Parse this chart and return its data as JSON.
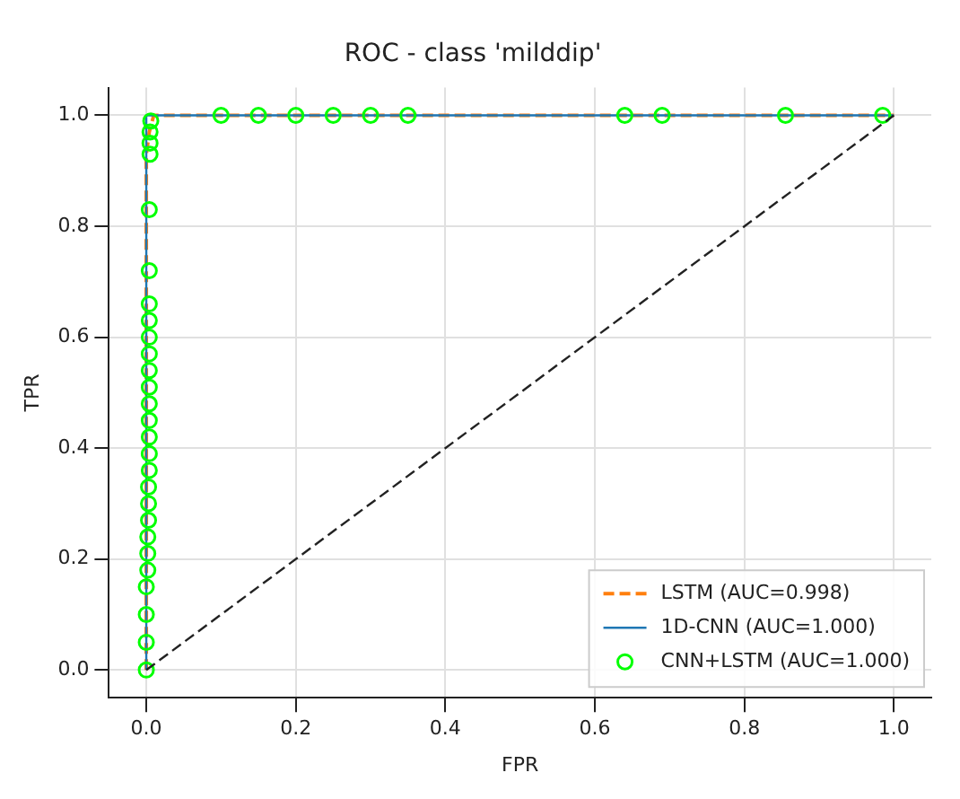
{
  "chart_data": {
    "type": "line",
    "title": "ROC - class 'milddip'",
    "xlabel": "FPR",
    "ylabel": "TPR",
    "xlim": [
      -0.05,
      1.05
    ],
    "ylim": [
      -0.05,
      1.05
    ],
    "xticks": [
      {
        "value": 0,
        "label": "0.0"
      },
      0.2,
      0.4,
      0.6,
      0.8,
      {
        "value": 1,
        "label": "1.0"
      }
    ],
    "yticks": [
      {
        "value": 0,
        "label": "0.0"
      },
      0.2,
      0.4,
      0.6,
      0.8,
      {
        "value": 1,
        "label": "1.0"
      }
    ],
    "grid": true,
    "legend": "bottom right",
    "series": [
      {
        "name": "LSTM (AUC=0.998)",
        "color": "#ff7f0e",
        "line_style": "dashed",
        "marker": "none",
        "x": [
          0,
          0,
          0.004,
          0.01,
          1
        ],
        "values": [
          0,
          0.93,
          0.97,
          1,
          1
        ]
      },
      {
        "name": "1D-CNN (AUC=1.000)",
        "color": "#1f77b4",
        "line_style": "solid",
        "marker": "none",
        "x": [
          0,
          0,
          1
        ],
        "values": [
          0,
          1,
          1
        ]
      },
      {
        "name": "CNN+LSTM (AUC=1.000)",
        "type": "scatter",
        "color": "#00ff00",
        "marker": "circle",
        "x": [
          0,
          0,
          0,
          0,
          0.002,
          0.002,
          0.002,
          0.003,
          0.003,
          0.003,
          0.004,
          0.004,
          0.004,
          0.004,
          0.004,
          0.004,
          0.004,
          0.004,
          0.004,
          0.004,
          0.004,
          0.004,
          0.004,
          0.005,
          0.005,
          0.005,
          0.006,
          0.1,
          0.15,
          0.2,
          0.25,
          0.3,
          0.35,
          0.64,
          0.69,
          0.855,
          0.985
        ],
        "values": [
          0,
          0.05,
          0.1,
          0.15,
          0.18,
          0.21,
          0.24,
          0.27,
          0.3,
          0.33,
          0.36,
          0.39,
          0.42,
          0.45,
          0.48,
          0.51,
          0.54,
          0.57,
          0.6,
          0.63,
          0.66,
          0.72,
          0.83,
          0.93,
          0.95,
          0.97,
          0.99,
          1,
          1,
          1,
          1,
          1,
          1,
          1,
          1,
          1,
          1
        ]
      },
      {
        "color": "#222222",
        "line_style": "dashed",
        "marker": "none",
        "x": [
          0,
          1
        ],
        "values": [
          0,
          1
        ]
      }
    ]
  }
}
